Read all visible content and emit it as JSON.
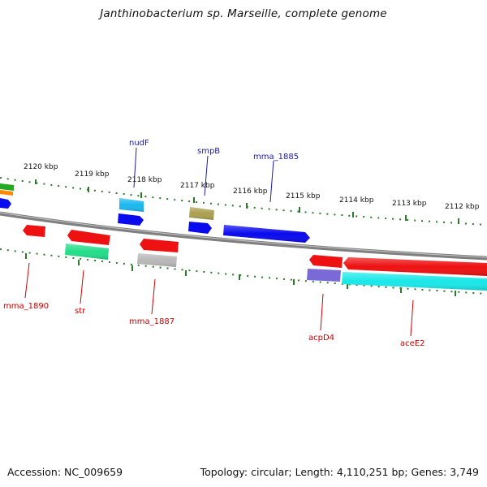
{
  "title": "Janthinobacterium sp. Marseille, complete genome",
  "footer": {
    "accession": "Accession: NC_009659",
    "summary": "Topology: circular; Length: 4,110,251 bp; Genes: 3,749"
  },
  "colors": {
    "backbone": "#7f7f7f",
    "tick": "#2a7a2a",
    "label_forward": "#1a1aaa",
    "label_reverse": "#cc0000"
  },
  "kbp_labels": [
    "2120 kbp",
    "2119 kbp",
    "2118 kbp",
    "2117 kbp",
    "2116 kbp",
    "2115 kbp",
    "2114 kbp",
    "2113 kbp",
    "2112 kbp"
  ],
  "gene_labels": {
    "forward": [
      "nudF",
      "smpB",
      "mma_1885"
    ],
    "reverse": [
      "mma_1890",
      "str",
      "mma_1887",
      "acpD4",
      "aceE2"
    ]
  },
  "features": [
    {
      "strand": "forward",
      "color": "#22aa22",
      "label": ""
    },
    {
      "strand": "forward",
      "color": "#ff8800",
      "label": ""
    },
    {
      "strand": "forward",
      "color": "#0a0aee",
      "label": ""
    },
    {
      "strand": "forward",
      "color": "#1ab8f0",
      "label": ""
    },
    {
      "strand": "forward",
      "color": "#0a0aee",
      "label": "nudF"
    },
    {
      "strand": "forward",
      "color": "#aaa050",
      "label": ""
    },
    {
      "strand": "forward",
      "color": "#0a0aee",
      "label": "smpB"
    },
    {
      "strand": "forward",
      "color": "#0a0aee",
      "label": "mma_1885"
    },
    {
      "strand": "reverse",
      "color": "#ee1111",
      "label": "mma_1890"
    },
    {
      "strand": "reverse",
      "color": "#ee1111",
      "label": ""
    },
    {
      "strand": "reverse",
      "color": "#22dd88",
      "label": "str"
    },
    {
      "strand": "reverse",
      "color": "#ee1111",
      "label": ""
    },
    {
      "strand": "reverse",
      "color": "#b8b8b8",
      "label": "mma_1887"
    },
    {
      "strand": "reverse",
      "color": "#ee1111",
      "label": ""
    },
    {
      "strand": "reverse",
      "color": "#7a6ad8",
      "label": "acpD4"
    },
    {
      "strand": "reverse",
      "color": "#ee1111",
      "label": ""
    },
    {
      "strand": "reverse",
      "color": "#1ae8e8",
      "label": "aceE2"
    }
  ]
}
